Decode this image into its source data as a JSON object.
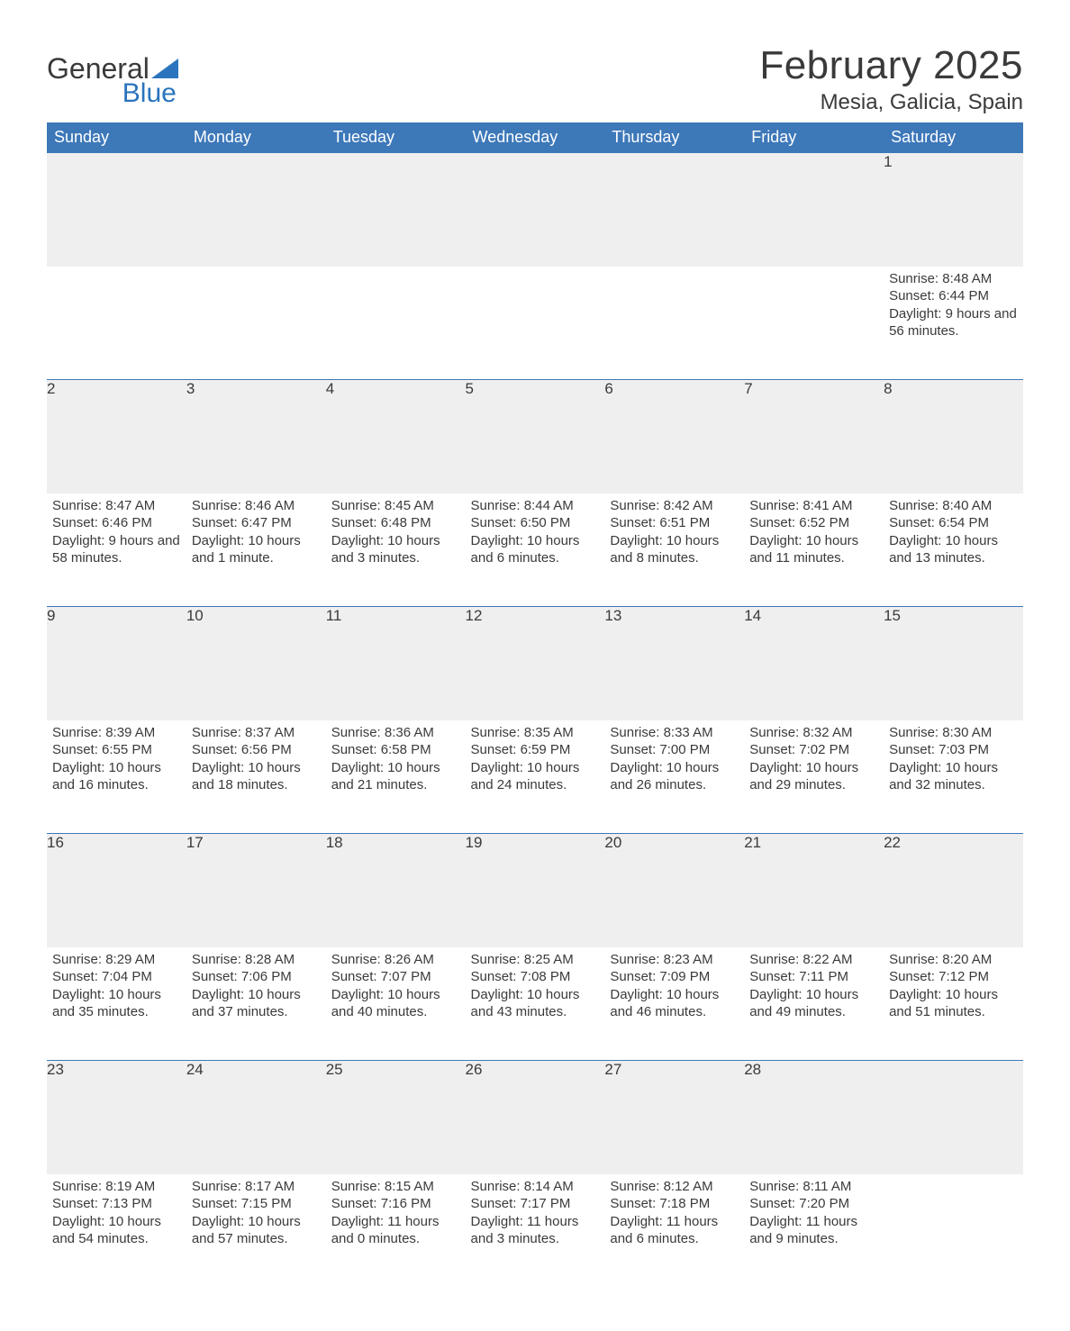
{
  "brand": {
    "part1": "General",
    "part2": "Blue"
  },
  "title": "February 2025",
  "location": "Mesia, Galicia, Spain",
  "colors": {
    "header_bg": "#3d78b9",
    "header_text": "#ffffff",
    "accent_border": "#3d78b9",
    "daynum_bg": "#efefef",
    "text": "#3a3a3a",
    "brand_blue": "#2b74bd",
    "page_bg": "#ffffff"
  },
  "weekdays": [
    "Sunday",
    "Monday",
    "Tuesday",
    "Wednesday",
    "Thursday",
    "Friday",
    "Saturday"
  ],
  "weeks": [
    [
      null,
      null,
      null,
      null,
      null,
      null,
      {
        "n": 1,
        "sunrise": "8:48 AM",
        "sunset": "6:44 PM",
        "daylight": "9 hours and 56 minutes."
      }
    ],
    [
      {
        "n": 2,
        "sunrise": "8:47 AM",
        "sunset": "6:46 PM",
        "daylight": "9 hours and 58 minutes."
      },
      {
        "n": 3,
        "sunrise": "8:46 AM",
        "sunset": "6:47 PM",
        "daylight": "10 hours and 1 minute."
      },
      {
        "n": 4,
        "sunrise": "8:45 AM",
        "sunset": "6:48 PM",
        "daylight": "10 hours and 3 minutes."
      },
      {
        "n": 5,
        "sunrise": "8:44 AM",
        "sunset": "6:50 PM",
        "daylight": "10 hours and 6 minutes."
      },
      {
        "n": 6,
        "sunrise": "8:42 AM",
        "sunset": "6:51 PM",
        "daylight": "10 hours and 8 minutes."
      },
      {
        "n": 7,
        "sunrise": "8:41 AM",
        "sunset": "6:52 PM",
        "daylight": "10 hours and 11 minutes."
      },
      {
        "n": 8,
        "sunrise": "8:40 AM",
        "sunset": "6:54 PM",
        "daylight": "10 hours and 13 minutes."
      }
    ],
    [
      {
        "n": 9,
        "sunrise": "8:39 AM",
        "sunset": "6:55 PM",
        "daylight": "10 hours and 16 minutes."
      },
      {
        "n": 10,
        "sunrise": "8:37 AM",
        "sunset": "6:56 PM",
        "daylight": "10 hours and 18 minutes."
      },
      {
        "n": 11,
        "sunrise": "8:36 AM",
        "sunset": "6:58 PM",
        "daylight": "10 hours and 21 minutes."
      },
      {
        "n": 12,
        "sunrise": "8:35 AM",
        "sunset": "6:59 PM",
        "daylight": "10 hours and 24 minutes."
      },
      {
        "n": 13,
        "sunrise": "8:33 AM",
        "sunset": "7:00 PM",
        "daylight": "10 hours and 26 minutes."
      },
      {
        "n": 14,
        "sunrise": "8:32 AM",
        "sunset": "7:02 PM",
        "daylight": "10 hours and 29 minutes."
      },
      {
        "n": 15,
        "sunrise": "8:30 AM",
        "sunset": "7:03 PM",
        "daylight": "10 hours and 32 minutes."
      }
    ],
    [
      {
        "n": 16,
        "sunrise": "8:29 AM",
        "sunset": "7:04 PM",
        "daylight": "10 hours and 35 minutes."
      },
      {
        "n": 17,
        "sunrise": "8:28 AM",
        "sunset": "7:06 PM",
        "daylight": "10 hours and 37 minutes."
      },
      {
        "n": 18,
        "sunrise": "8:26 AM",
        "sunset": "7:07 PM",
        "daylight": "10 hours and 40 minutes."
      },
      {
        "n": 19,
        "sunrise": "8:25 AM",
        "sunset": "7:08 PM",
        "daylight": "10 hours and 43 minutes."
      },
      {
        "n": 20,
        "sunrise": "8:23 AM",
        "sunset": "7:09 PM",
        "daylight": "10 hours and 46 minutes."
      },
      {
        "n": 21,
        "sunrise": "8:22 AM",
        "sunset": "7:11 PM",
        "daylight": "10 hours and 49 minutes."
      },
      {
        "n": 22,
        "sunrise": "8:20 AM",
        "sunset": "7:12 PM",
        "daylight": "10 hours and 51 minutes."
      }
    ],
    [
      {
        "n": 23,
        "sunrise": "8:19 AM",
        "sunset": "7:13 PM",
        "daylight": "10 hours and 54 minutes."
      },
      {
        "n": 24,
        "sunrise": "8:17 AM",
        "sunset": "7:15 PM",
        "daylight": "10 hours and 57 minutes."
      },
      {
        "n": 25,
        "sunrise": "8:15 AM",
        "sunset": "7:16 PM",
        "daylight": "11 hours and 0 minutes."
      },
      {
        "n": 26,
        "sunrise": "8:14 AM",
        "sunset": "7:17 PM",
        "daylight": "11 hours and 3 minutes."
      },
      {
        "n": 27,
        "sunrise": "8:12 AM",
        "sunset": "7:18 PM",
        "daylight": "11 hours and 6 minutes."
      },
      {
        "n": 28,
        "sunrise": "8:11 AM",
        "sunset": "7:20 PM",
        "daylight": "11 hours and 9 minutes."
      },
      null
    ]
  ],
  "labels": {
    "sunrise": "Sunrise: ",
    "sunset": "Sunset: ",
    "daylight": "Daylight: "
  }
}
